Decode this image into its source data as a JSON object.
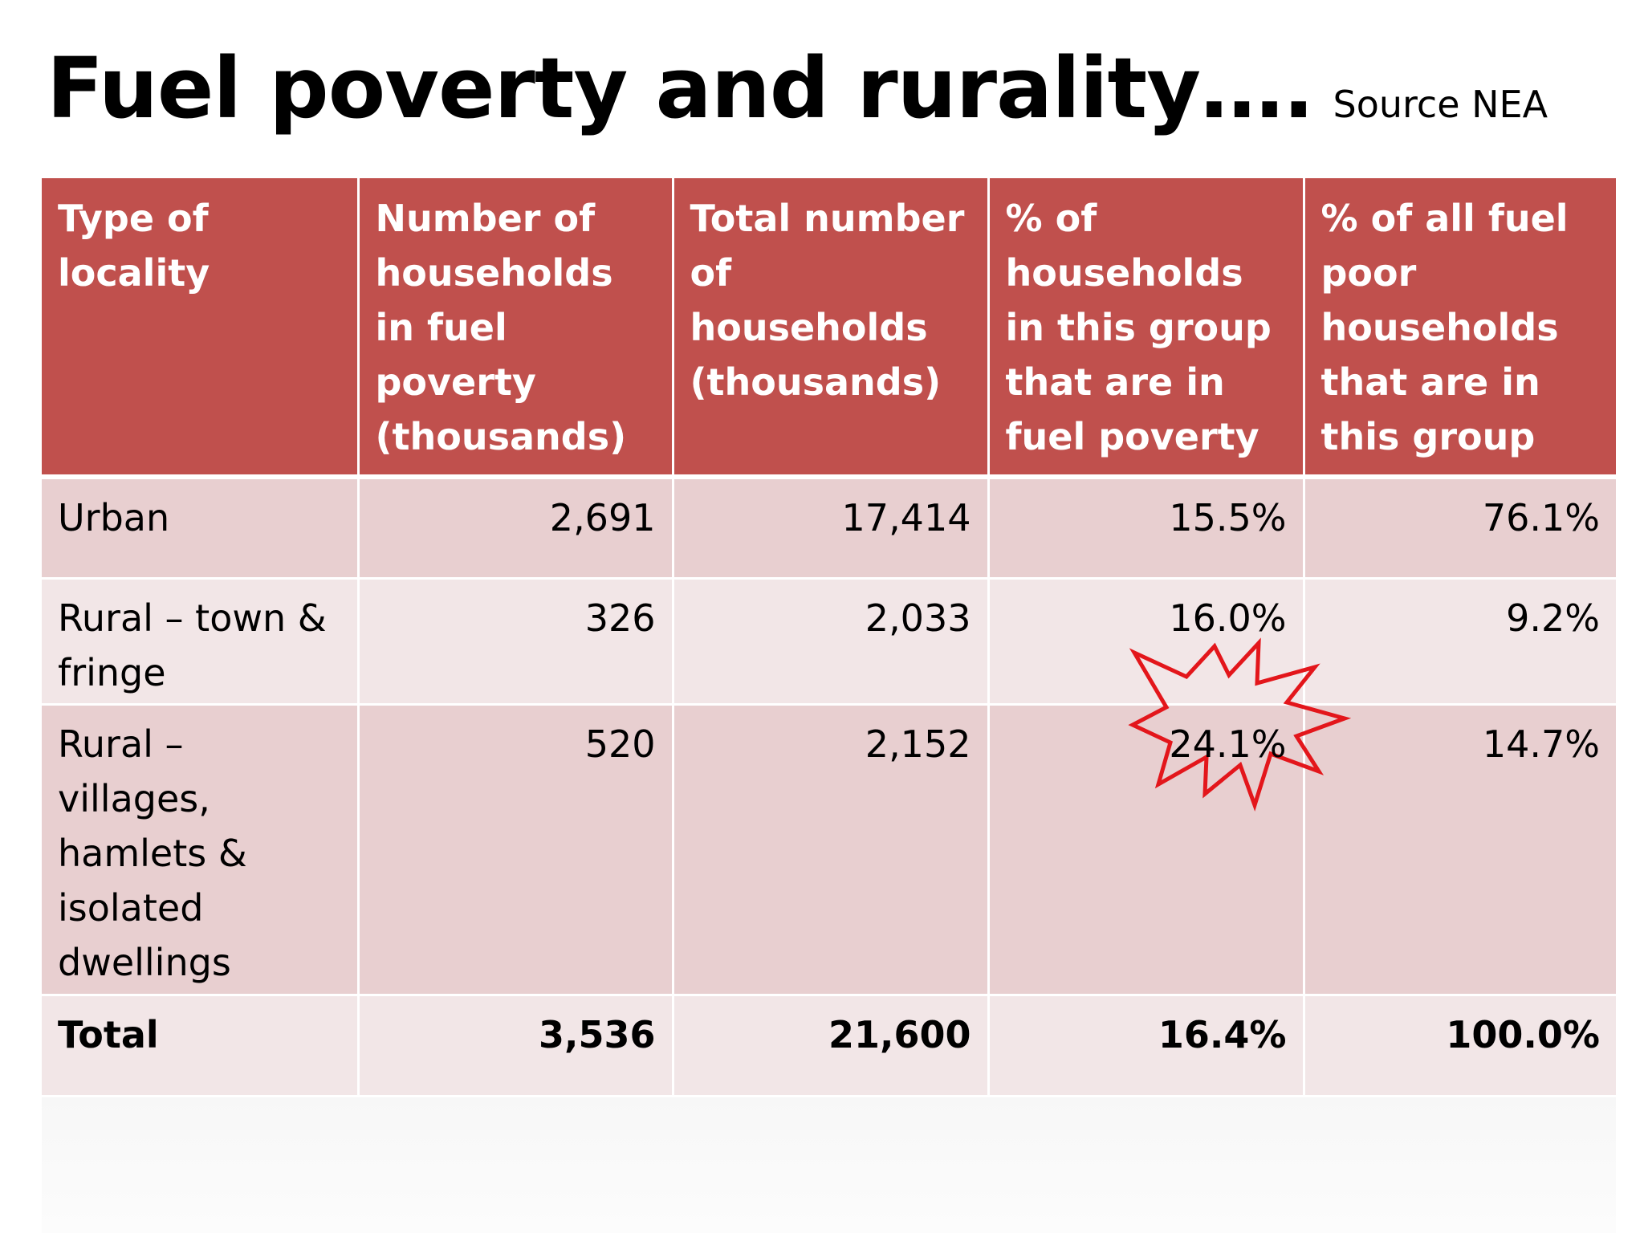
{
  "title": {
    "main": "Fuel poverty and rurality….",
    "source": "Source NEA"
  },
  "table": {
    "headers": [
      "Type of locality",
      "Number of households in fuel poverty (thousands)",
      "Total number of households (thousands)",
      "% of households in this group that are in fuel poverty",
      "% of all fuel poor households that are in this group"
    ],
    "rows": [
      [
        "Urban",
        "2,691",
        "17,414",
        "15.5%",
        "76.1%"
      ],
      [
        "Rural – town & fringe",
        "326",
        "2,033",
        "16.0%",
        "9.2%"
      ],
      [
        "Rural – villages, hamlets & isolated dwellings",
        "520",
        "2,152",
        "24.1%",
        "14.7%"
      ],
      [
        "Total",
        "3,536",
        "21,600",
        "16.4%",
        "100.0%"
      ]
    ]
  },
  "highlight": {
    "icon": "starburst-icon",
    "color": "#e3161b"
  }
}
